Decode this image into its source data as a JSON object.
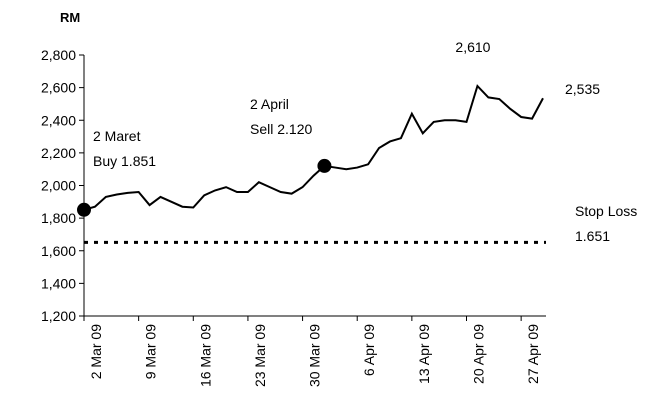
{
  "chart_data": {
    "type": "line",
    "y_label": "RM",
    "categories": [
      "2 Mar 09",
      null,
      null,
      null,
      null,
      "9 Mar 09",
      null,
      null,
      null,
      null,
      "16 Mar 09",
      null,
      null,
      null,
      null,
      "23 Mar 09",
      null,
      null,
      null,
      null,
      "30 Mar 09",
      null,
      null,
      null,
      null,
      "6 Apr 09",
      null,
      null,
      null,
      null,
      "13 Apr 09",
      null,
      null,
      null,
      null,
      "20 Apr 09",
      null,
      null,
      null,
      null,
      "27 Apr 09",
      null,
      null
    ],
    "series": [
      {
        "name": "RM",
        "color": "#000000",
        "values": [
          1851,
          1870,
          1930,
          1945,
          1955,
          1960,
          1880,
          1930,
          1900,
          1870,
          1865,
          1940,
          1970,
          1990,
          1960,
          1960,
          2020,
          1990,
          1960,
          1950,
          1990,
          2060,
          2120,
          2110,
          2100,
          2110,
          2130,
          2230,
          2270,
          2290,
          2440,
          2320,
          2390,
          2400,
          2400,
          2390,
          2610,
          2540,
          2530,
          2470,
          2420,
          2410,
          2535
        ],
        "value_labels": [
          null,
          null,
          null,
          null,
          null,
          null,
          null,
          null,
          null,
          null,
          null,
          null,
          null,
          null,
          null,
          null,
          null,
          null,
          null,
          null,
          null,
          null,
          null,
          null,
          null,
          null,
          null,
          null,
          null,
          null,
          null,
          null,
          null,
          null,
          null,
          null,
          "2,610",
          null,
          null,
          null,
          null,
          null,
          "2,535"
        ]
      }
    ],
    "stop_loss": 1651,
    "annotations": [
      "2 Maret",
      "Buy 1.851",
      "2 April",
      "Sell 2.120",
      "Stop Loss",
      "1.651"
    ],
    "ylim": [
      1200,
      2800
    ],
    "yticks": [
      {
        "value": 1200,
        "label": "1,200"
      },
      {
        "value": 1400,
        "label": "1,400"
      },
      {
        "value": 1600,
        "label": "1,600"
      },
      {
        "value": 1800,
        "label": "1,800"
      },
      {
        "value": 2000,
        "label": "2,000"
      },
      {
        "value": 2200,
        "label": "2,200"
      },
      {
        "value": 2400,
        "label": "2,400"
      },
      {
        "value": 2600,
        "label": "2,600"
      },
      {
        "value": 2800,
        "label": "2,800"
      }
    ],
    "grid": false
  }
}
